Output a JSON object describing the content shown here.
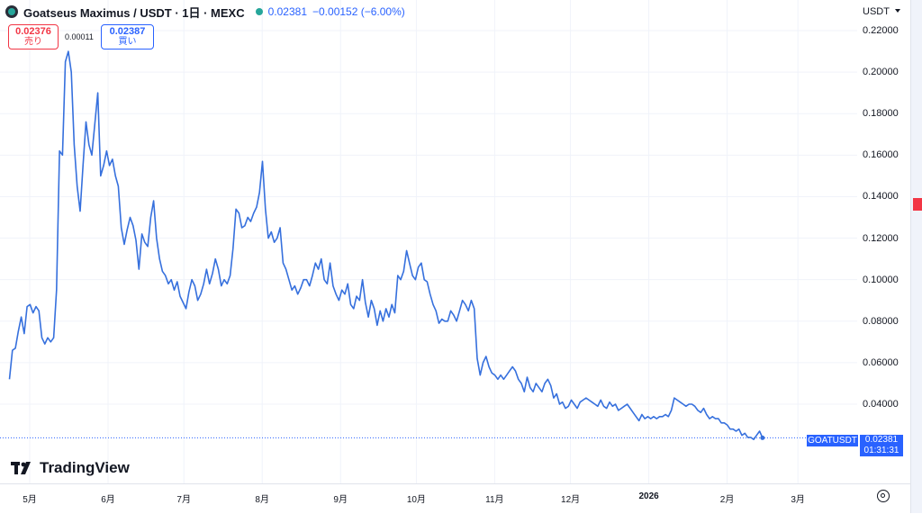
{
  "legend": {
    "symbol": "Goatseus Maximus / USDT · 1日 · MEXC",
    "last": "0.02381",
    "change": "−0.00152 (−6.00%)"
  },
  "quotes": {
    "sell_value": "0.02376",
    "sell_label": "売り",
    "spread": "0.00011",
    "buy_value": "0.02387",
    "buy_label": "買い"
  },
  "price_axis": {
    "currency": "USDT",
    "ticks": [
      "0.22000",
      "0.20000",
      "0.18000",
      "0.16000",
      "0.14000",
      "0.12000",
      "0.10000",
      "0.08000",
      "0.06000",
      "0.04000"
    ]
  },
  "time_axis": {
    "ticks": [
      "5月",
      "6月",
      "7月",
      "8月",
      "9月",
      "10月",
      "11月",
      "12月",
      "2026",
      "2月",
      "3月"
    ]
  },
  "last_price": {
    "symbol": "GOATUSDT",
    "value": "0.02381",
    "countdown": "01:31:31"
  },
  "branding": "TradingView",
  "colors": {
    "line": "#3670dd",
    "accent": "#2962ff",
    "sell": "#f23645"
  },
  "chart_data": {
    "type": "line",
    "title": "Goatseus Maximus / USDT · 1日 · MEXC",
    "xlabel": "",
    "ylabel": "",
    "ylim": [
      0.015,
      0.23
    ],
    "x_start": "2025-04-23",
    "x_end": "2026-02-15",
    "grid": true,
    "series": [
      {
        "values": [
          0.052,
          0.066,
          0.067,
          0.075,
          0.082,
          0.074,
          0.087,
          0.088,
          0.084,
          0.087,
          0.085,
          0.072,
          0.069,
          0.072,
          0.07,
          0.072,
          0.095,
          0.162,
          0.16,
          0.205,
          0.21,
          0.2,
          0.165,
          0.145,
          0.133,
          0.155,
          0.176,
          0.165,
          0.16,
          0.175,
          0.19,
          0.15,
          0.155,
          0.162,
          0.155,
          0.158,
          0.15,
          0.145,
          0.125,
          0.117,
          0.124,
          0.13,
          0.126,
          0.119,
          0.105,
          0.122,
          0.118,
          0.116,
          0.13,
          0.138,
          0.12,
          0.11,
          0.104,
          0.102,
          0.098,
          0.1,
          0.095,
          0.099,
          0.092,
          0.089,
          0.086,
          0.094,
          0.1,
          0.097,
          0.09,
          0.093,
          0.098,
          0.105,
          0.098,
          0.103,
          0.11,
          0.105,
          0.097,
          0.1,
          0.098,
          0.102,
          0.115,
          0.134,
          0.132,
          0.125,
          0.126,
          0.13,
          0.128,
          0.132,
          0.135,
          0.142,
          0.157,
          0.134,
          0.12,
          0.123,
          0.118,
          0.12,
          0.125,
          0.108,
          0.105,
          0.1,
          0.095,
          0.097,
          0.093,
          0.096,
          0.1,
          0.1,
          0.097,
          0.102,
          0.108,
          0.105,
          0.11,
          0.1,
          0.098,
          0.108,
          0.097,
          0.093,
          0.09,
          0.095,
          0.093,
          0.098,
          0.088,
          0.086,
          0.092,
          0.09,
          0.1,
          0.089,
          0.082,
          0.09,
          0.086,
          0.078,
          0.085,
          0.08,
          0.086,
          0.082,
          0.088,
          0.084,
          0.102,
          0.1,
          0.104,
          0.114,
          0.108,
          0.102,
          0.1,
          0.106,
          0.108,
          0.1,
          0.099,
          0.093,
          0.088,
          0.085,
          0.079,
          0.081,
          0.08,
          0.08,
          0.085,
          0.083,
          0.08,
          0.085,
          0.09,
          0.088,
          0.085,
          0.09,
          0.086,
          0.062,
          0.054,
          0.06,
          0.063,
          0.058,
          0.055,
          0.054,
          0.052,
          0.054,
          0.052,
          0.054,
          0.056,
          0.058,
          0.056,
          0.052,
          0.05,
          0.046,
          0.053,
          0.048,
          0.046,
          0.05,
          0.048,
          0.046,
          0.05,
          0.052,
          0.049,
          0.043,
          0.045,
          0.04,
          0.041,
          0.038,
          0.039,
          0.042,
          0.04,
          0.038,
          0.041,
          0.042,
          0.043,
          0.042,
          0.041,
          0.04,
          0.039,
          0.042,
          0.039,
          0.038,
          0.041,
          0.039,
          0.04,
          0.037,
          0.038,
          0.039,
          0.04,
          0.038,
          0.036,
          0.034,
          0.032,
          0.035,
          0.033,
          0.034,
          0.033,
          0.034,
          0.033,
          0.034,
          0.034,
          0.035,
          0.034,
          0.037,
          0.043,
          0.042,
          0.041,
          0.04,
          0.039,
          0.04,
          0.04,
          0.039,
          0.037,
          0.036,
          0.038,
          0.035,
          0.033,
          0.034,
          0.033,
          0.033,
          0.031,
          0.031,
          0.03,
          0.028,
          0.028,
          0.027,
          0.028,
          0.025,
          0.026,
          0.024,
          0.024,
          0.023,
          0.025,
          0.027,
          0.0238
        ]
      }
    ]
  }
}
